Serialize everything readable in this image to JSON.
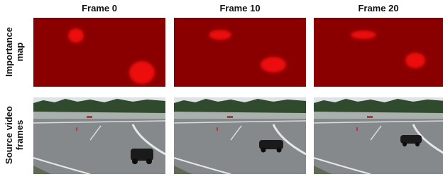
{
  "columns": [
    "Frame 0",
    "Frame 10",
    "Frame 20"
  ],
  "rows": [
    "Importance map",
    "Source video frames"
  ]
}
